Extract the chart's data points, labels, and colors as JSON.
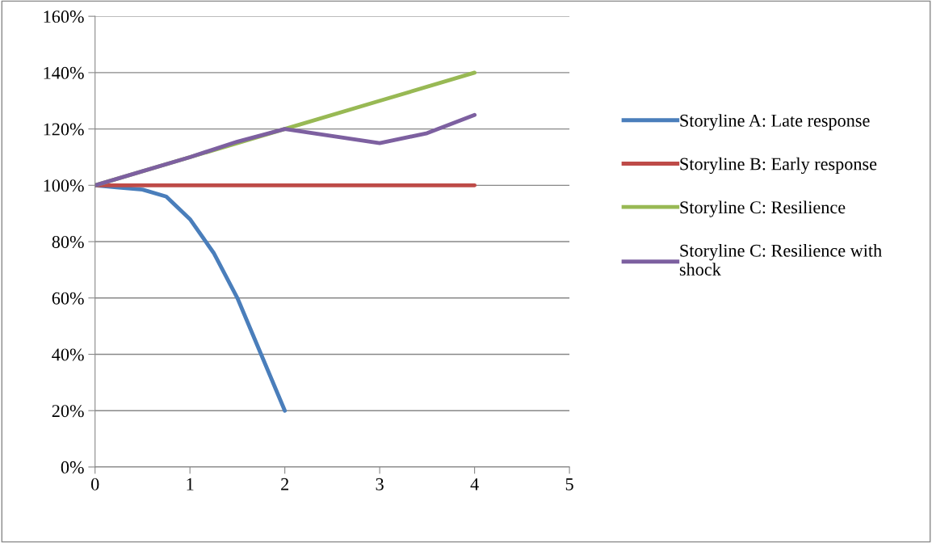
{
  "chart_data": {
    "type": "line",
    "xlim": [
      0,
      5
    ],
    "xticks": [
      0,
      1,
      2,
      3,
      4,
      5
    ],
    "ylim": [
      0,
      160
    ],
    "yticks": [
      {
        "value": 0,
        "label": "0%"
      },
      {
        "value": 20,
        "label": "20%"
      },
      {
        "value": 40,
        "label": "40%"
      },
      {
        "value": 60,
        "label": "60%"
      },
      {
        "value": 80,
        "label": "80%"
      },
      {
        "value": 100,
        "label": "100%"
      },
      {
        "value": 120,
        "label": "120%"
      },
      {
        "value": 140,
        "label": "140%"
      },
      {
        "value": 160,
        "label": "160%"
      }
    ],
    "grid": "y",
    "legend": "right",
    "marker": "none",
    "line_style": "solid",
    "series": [
      {
        "name": "Storyline A: Late response",
        "color": "#4a7ebb",
        "x": [
          0,
          0.25,
          0.5,
          0.75,
          1,
          1.25,
          1.5,
          1.75,
          2
        ],
        "values": [
          100,
          99.2,
          98.5,
          96,
          88,
          76,
          60,
          40,
          20
        ]
      },
      {
        "name": "Storyline B: Early response",
        "color": "#be4b48",
        "x": [
          0,
          1,
          2,
          3,
          4
        ],
        "values": [
          100,
          100,
          100,
          100,
          100
        ]
      },
      {
        "name": "Storyline C: Resilience",
        "color": "#98b954",
        "x": [
          0,
          1,
          2,
          3,
          4
        ],
        "values": [
          100,
          110,
          120,
          130,
          140
        ]
      },
      {
        "name": "Storyline C: Resilience with shock",
        "color": "#7d60a0",
        "x": [
          0,
          0.5,
          1,
          1.5,
          2,
          2.5,
          3,
          3.5,
          4
        ],
        "values": [
          100,
          105,
          110,
          115.5,
          120,
          117.5,
          115,
          118.5,
          125
        ]
      }
    ]
  }
}
